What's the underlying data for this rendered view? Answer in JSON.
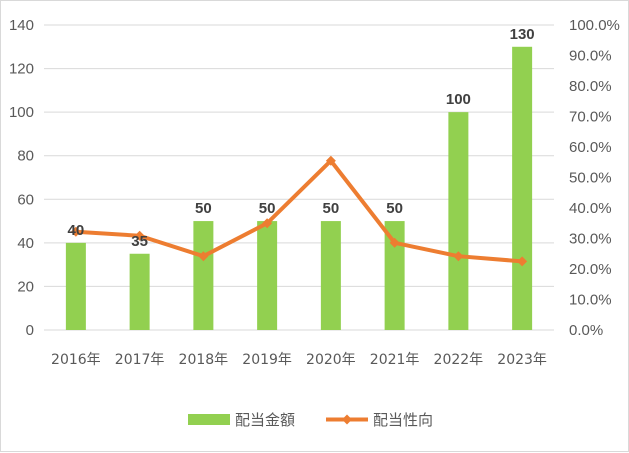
{
  "chart_data": {
    "type": "bar",
    "categories": [
      "2016年",
      "2017年",
      "2018年",
      "2019年",
      "2020年",
      "2021年",
      "2022年",
      "2023年"
    ],
    "series": [
      {
        "name": "配当金額",
        "type": "bar",
        "axis": "left",
        "color": "#92d050",
        "values": [
          40,
          35,
          50,
          50,
          50,
          50,
          100,
          130
        ]
      },
      {
        "name": "配当性向",
        "type": "line",
        "axis": "right",
        "color": "#ed7d31",
        "values": [
          0.322,
          0.309,
          0.242,
          0.35,
          0.555,
          0.286,
          0.242,
          0.225
        ]
      }
    ],
    "data_labels": [
      "40",
      "35",
      "50",
      "50",
      "50",
      "50",
      "100",
      "130"
    ],
    "y_left": {
      "ticks": [
        "0",
        "20",
        "40",
        "60",
        "80",
        "100",
        "120",
        "140"
      ],
      "lim": [
        0,
        140
      ]
    },
    "y_right": {
      "ticks": [
        "0.0%",
        "10.0%",
        "20.0%",
        "30.0%",
        "40.0%",
        "50.0%",
        "60.0%",
        "70.0%",
        "80.0%",
        "90.0%",
        "100.0%"
      ],
      "lim": [
        0,
        1
      ]
    },
    "grid": true,
    "legend_position": "bottom"
  }
}
